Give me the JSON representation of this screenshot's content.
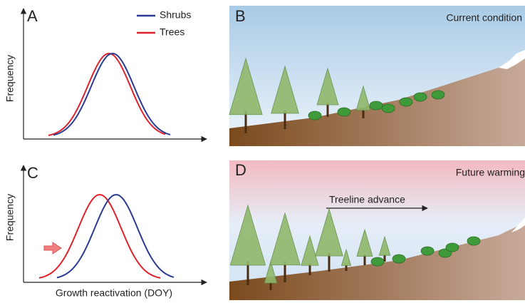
{
  "panels": {
    "a": {
      "label": "A",
      "y_label": "Frequency",
      "legend": [
        "Shrubs",
        "Trees"
      ]
    },
    "b": {
      "label": "B",
      "caption": "Current condition"
    },
    "c": {
      "label": "C",
      "y_label": "Frequency",
      "x_label": "Growth reactivation (DOY)"
    },
    "d": {
      "label": "D",
      "caption": "Future warming",
      "annotation": "Treeline advance"
    }
  }
}
